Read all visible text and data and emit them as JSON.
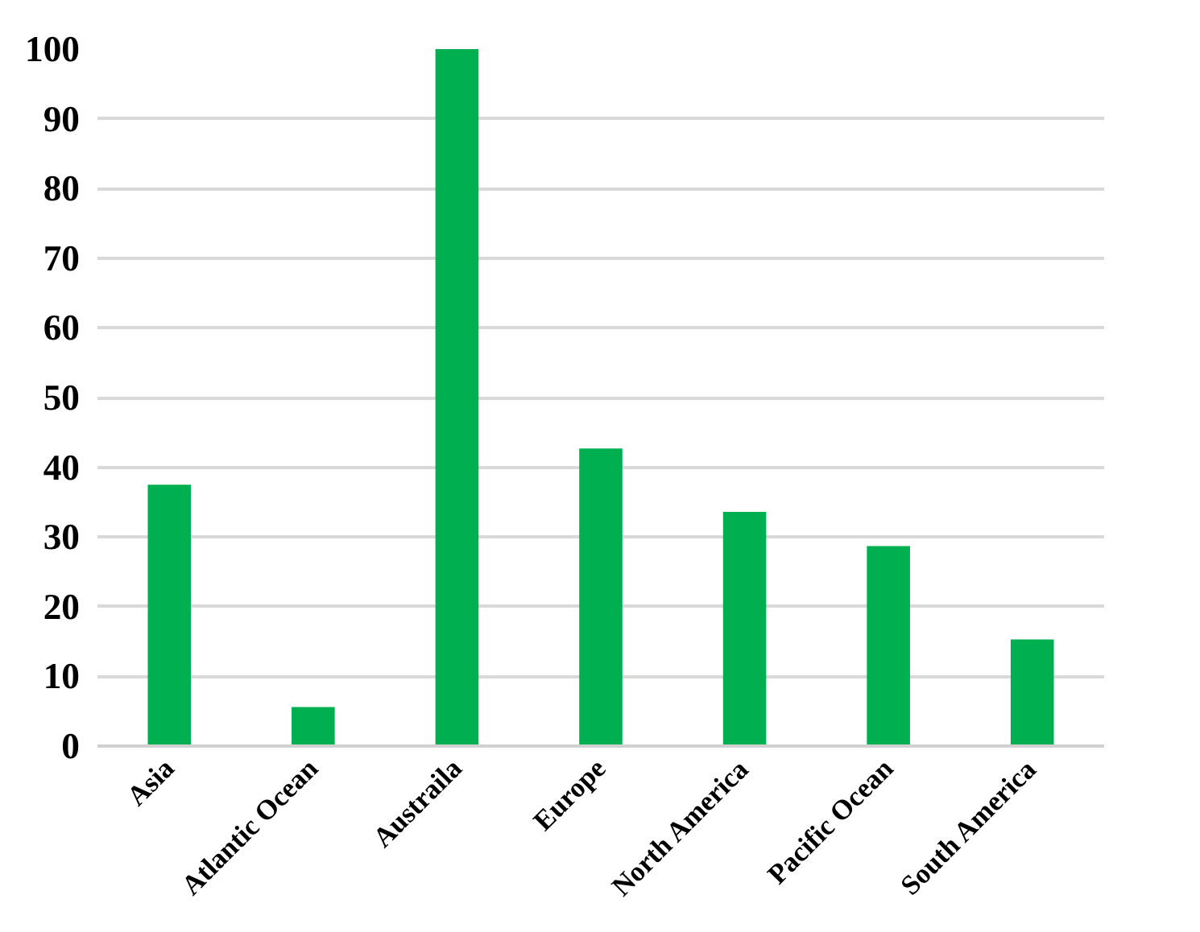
{
  "chart_data": {
    "type": "bar",
    "categories": [
      "Asia",
      "Atlantic Ocean",
      "Austraila",
      "Europe",
      "North America",
      "Pacific Ocean",
      "South America"
    ],
    "values": [
      37.5,
      5.6,
      100,
      42.7,
      33.6,
      28.7,
      15.3
    ],
    "color": "#00b050",
    "ylim": [
      0,
      100
    ],
    "yticks": [
      0,
      10,
      20,
      30,
      40,
      50,
      60,
      70,
      80,
      90,
      100
    ],
    "grid": "y"
  }
}
